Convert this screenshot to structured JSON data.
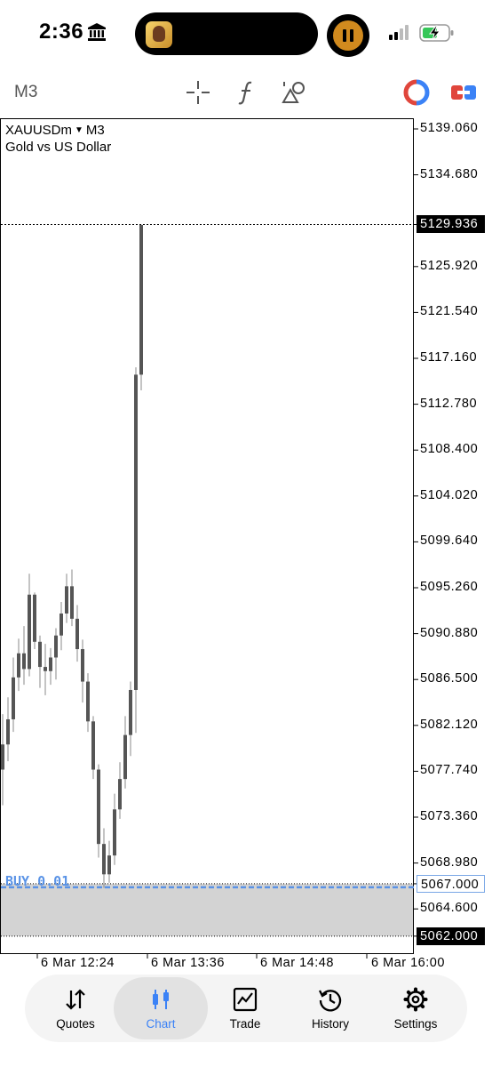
{
  "status_bar": {
    "time": "2:36"
  },
  "toolbar": {
    "timeframe": "M3"
  },
  "chart": {
    "symbol": "XAUUSDm",
    "timeframe": "M3",
    "description": "Gold vs US Dollar",
    "order_label": "BUY 0.01",
    "price_axis": [
      "5139.060",
      "5134.680",
      "5129.936",
      "5125.920",
      "5121.540",
      "5117.160",
      "5112.780",
      "5108.400",
      "5104.020",
      "5099.640",
      "5095.260",
      "5090.880",
      "5086.500",
      "5082.120",
      "5077.740",
      "5073.360",
      "5068.980",
      "5067.000",
      "5064.600",
      "5062.000"
    ],
    "current_price": "5129.936",
    "order_price": "5067.000",
    "lower_level": "5062.000",
    "time_axis": [
      "6 Mar 12:24",
      "6 Mar 13:36",
      "6 Mar 14:48",
      "6 Mar 16:00"
    ],
    "colors": {
      "candle": "#555555",
      "order_line": "#5a93e6",
      "zone": "#d3d3d3"
    }
  },
  "chart_data": {
    "type": "candlestick",
    "symbol": "XAUUSDm",
    "ylim": [
      5062.0,
      5139.06
    ],
    "x": [
      "6 Mar 12:24",
      "6 Mar 13:36",
      "6 Mar 14:48",
      "6 Mar 16:00"
    ],
    "candles_approx": [
      {
        "o": 5077.9,
        "h": 5083.2,
        "l": 5074.5,
        "c": 5080.3
      },
      {
        "o": 5080.3,
        "h": 5084.8,
        "l": 5078.7,
        "c": 5082.7
      },
      {
        "o": 5082.7,
        "h": 5088.6,
        "l": 5081.5,
        "c": 5086.7
      },
      {
        "o": 5086.7,
        "h": 5090.4,
        "l": 5085.4,
        "c": 5089.0
      },
      {
        "o": 5089.0,
        "h": 5091.6,
        "l": 5086.0,
        "c": 5087.5
      },
      {
        "o": 5087.5,
        "h": 5096.6,
        "l": 5086.8,
        "c": 5094.6
      },
      {
        "o": 5094.6,
        "h": 5094.8,
        "l": 5089.4,
        "c": 5090.1
      },
      {
        "o": 5090.1,
        "h": 5090.7,
        "l": 5085.7,
        "c": 5087.7
      },
      {
        "o": 5087.7,
        "h": 5089.9,
        "l": 5085.0,
        "c": 5087.3
      },
      {
        "o": 5087.3,
        "h": 5089.5,
        "l": 5086.0,
        "c": 5088.6
      },
      {
        "o": 5088.6,
        "h": 5091.4,
        "l": 5086.5,
        "c": 5090.7
      },
      {
        "o": 5090.7,
        "h": 5093.9,
        "l": 5089.3,
        "c": 5092.8
      },
      {
        "o": 5092.8,
        "h": 5096.6,
        "l": 5091.9,
        "c": 5095.4
      },
      {
        "o": 5095.4,
        "h": 5097.0,
        "l": 5091.6,
        "c": 5092.3
      },
      {
        "o": 5092.3,
        "h": 5093.6,
        "l": 5088.2,
        "c": 5089.4
      },
      {
        "o": 5089.4,
        "h": 5090.3,
        "l": 5084.3,
        "c": 5086.3
      },
      {
        "o": 5086.3,
        "h": 5087.1,
        "l": 5081.5,
        "c": 5082.5
      },
      {
        "o": 5082.5,
        "h": 5083.0,
        "l": 5077.0,
        "c": 5077.9
      },
      {
        "o": 5077.9,
        "h": 5078.4,
        "l": 5069.5,
        "c": 5070.8
      },
      {
        "o": 5070.8,
        "h": 5072.3,
        "l": 5066.6,
        "c": 5067.9
      },
      {
        "o": 5067.9,
        "h": 5071.1,
        "l": 5067.1,
        "c": 5069.7
      },
      {
        "o": 5069.7,
        "h": 5075.6,
        "l": 5068.8,
        "c": 5074.1
      },
      {
        "o": 5074.1,
        "h": 5078.6,
        "l": 5073.2,
        "c": 5077.0
      },
      {
        "o": 5077.0,
        "h": 5083.0,
        "l": 5076.1,
        "c": 5081.2
      },
      {
        "o": 5081.2,
        "h": 5086.3,
        "l": 5079.2,
        "c": 5085.5
      },
      {
        "o": 5085.5,
        "h": 5116.3,
        "l": 5081.4,
        "c": 5115.6
      },
      {
        "o": 5115.6,
        "h": 5129.9,
        "l": 5114.1,
        "c": 5129.9
      }
    ]
  },
  "nav": [
    {
      "label": "Quotes",
      "icon": "quotes-icon"
    },
    {
      "label": "Chart",
      "icon": "chart-icon"
    },
    {
      "label": "Trade",
      "icon": "trade-icon"
    },
    {
      "label": "History",
      "icon": "history-icon"
    },
    {
      "label": "Settings",
      "icon": "settings-icon"
    }
  ]
}
